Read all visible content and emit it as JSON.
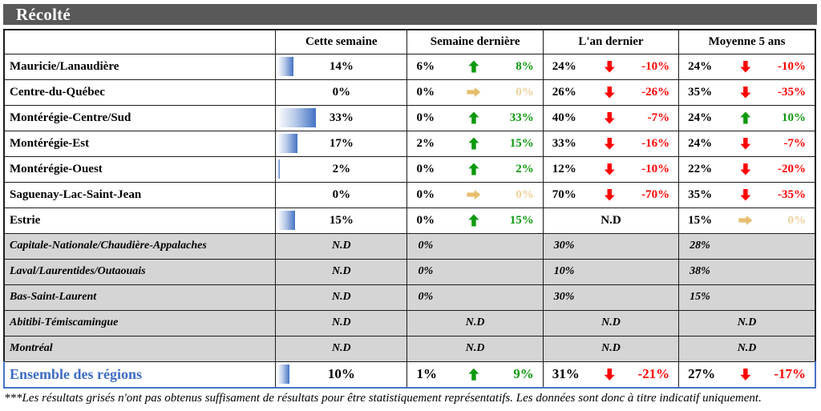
{
  "title": "Récolté",
  "columns": {
    "this_week": "Cette semaine",
    "last_week": "Semaine dernière",
    "last_year": "L'an dernier",
    "avg5": "Moyenne 5 ans"
  },
  "footnote": "***Les résultats grisés n'ont pas obtenus suffisament de résultats pour être statistiquement représentatifs. Les données sont donc à titre indicatif uniquement.",
  "theme": {
    "title_bar_bg": "#595959",
    "title_text": "#ffffff",
    "positive_green": "#0d990d",
    "negative_red": "#fe0000",
    "neutral_tan": "#e7bd6e",
    "neutral_tan_text": "#ecd29a",
    "bar_blue": "#4472c4",
    "total_row_blue": "#3e6cc4",
    "muted_row_bg": "#d5d5d5"
  },
  "rows": [
    {
      "name": "Mauricie/Lanaudière",
      "bar": 14,
      "this_week": "14%",
      "last_week": {
        "value": "6%",
        "dir": "up",
        "delta": "8%",
        "tone": "pos"
      },
      "last_year": {
        "value": "24%",
        "dir": "down",
        "delta": "-10%",
        "tone": "neg"
      },
      "avg5": {
        "value": "24%",
        "dir": "down",
        "delta": "-10%",
        "tone": "neg"
      }
    },
    {
      "name": "Centre-du-Québec",
      "bar": 0,
      "this_week": "0%",
      "last_week": {
        "value": "0%",
        "dir": "right",
        "delta": "0%",
        "tone": "zero"
      },
      "last_year": {
        "value": "26%",
        "dir": "down",
        "delta": "-26%",
        "tone": "neg"
      },
      "avg5": {
        "value": "35%",
        "dir": "down",
        "delta": "-35%",
        "tone": "neg"
      }
    },
    {
      "name": "Montérégie-Centre/Sud",
      "bar": 33,
      "this_week": "33%",
      "last_week": {
        "value": "0%",
        "dir": "up",
        "delta": "33%",
        "tone": "pos"
      },
      "last_year": {
        "value": "40%",
        "dir": "down",
        "delta": "-7%",
        "tone": "neg"
      },
      "avg5": {
        "value": "24%",
        "dir": "up",
        "delta": "10%",
        "tone": "pos"
      }
    },
    {
      "name": "Montérégie-Est",
      "bar": 17,
      "this_week": "17%",
      "last_week": {
        "value": "2%",
        "dir": "up",
        "delta": "15%",
        "tone": "pos"
      },
      "last_year": {
        "value": "33%",
        "dir": "down",
        "delta": "-16%",
        "tone": "neg"
      },
      "avg5": {
        "value": "24%",
        "dir": "down",
        "delta": "-7%",
        "tone": "neg"
      }
    },
    {
      "name": "Montérégie-Ouest",
      "bar": 2,
      "this_week": "2%",
      "last_week": {
        "value": "0%",
        "dir": "up",
        "delta": "2%",
        "tone": "pos"
      },
      "last_year": {
        "value": "12%",
        "dir": "down",
        "delta": "-10%",
        "tone": "neg"
      },
      "avg5": {
        "value": "22%",
        "dir": "down",
        "delta": "-20%",
        "tone": "neg"
      }
    },
    {
      "name": "Saguenay-Lac-Saint-Jean",
      "bar": 0,
      "this_week": "0%",
      "last_week": {
        "value": "0%",
        "dir": "right",
        "delta": "0%",
        "tone": "zero"
      },
      "last_year": {
        "value": "70%",
        "dir": "down",
        "delta": "-70%",
        "tone": "neg"
      },
      "avg5": {
        "value": "35%",
        "dir": "down",
        "delta": "-35%",
        "tone": "neg"
      }
    },
    {
      "name": "Estrie",
      "bar": 15,
      "this_week": "15%",
      "last_week": {
        "value": "0%",
        "dir": "up",
        "delta": "15%",
        "tone": "pos"
      },
      "last_year_nd": "N.D",
      "avg5": {
        "value": "15%",
        "dir": "right",
        "delta": "0%",
        "tone": "zero"
      }
    },
    {
      "name": "Capitale-Nationale/Chaudière-Appalaches",
      "this_week_nd": "N.D",
      "last_week_left": "0%",
      "last_year_left": "30%",
      "avg5_left": "28%"
    },
    {
      "name": "Laval/Laurentides/Outaouais",
      "this_week_nd": "N.D",
      "last_week_left": "0%",
      "last_year_left": "10%",
      "avg5_left": "38%"
    },
    {
      "name": "Bas-Saint-Laurent",
      "this_week_nd": "N.D",
      "last_week_left": "0%",
      "last_year_left": "30%",
      "avg5_left": "15%"
    },
    {
      "name": "Abitibi-Témiscamingue",
      "this_week_nd": "N.D",
      "last_week_nd": "N.D",
      "last_year_nd": "N.D",
      "avg5_nd": "N.D"
    },
    {
      "name": "Montréal",
      "this_week_nd": "N.D",
      "last_week_nd": "N.D",
      "last_year_nd": "N.D",
      "avg5_nd": "N.D"
    },
    {
      "name": "Ensemble des régions",
      "bar": 10,
      "this_week": "10%",
      "last_week": {
        "value": "1%",
        "dir": "up",
        "delta": "9%",
        "tone": "pos"
      },
      "last_year": {
        "value": "31%",
        "dir": "down",
        "delta": "-21%",
        "tone": "neg"
      },
      "avg5": {
        "value": "27%",
        "dir": "down",
        "delta": "-17%",
        "tone": "neg"
      }
    }
  ]
}
